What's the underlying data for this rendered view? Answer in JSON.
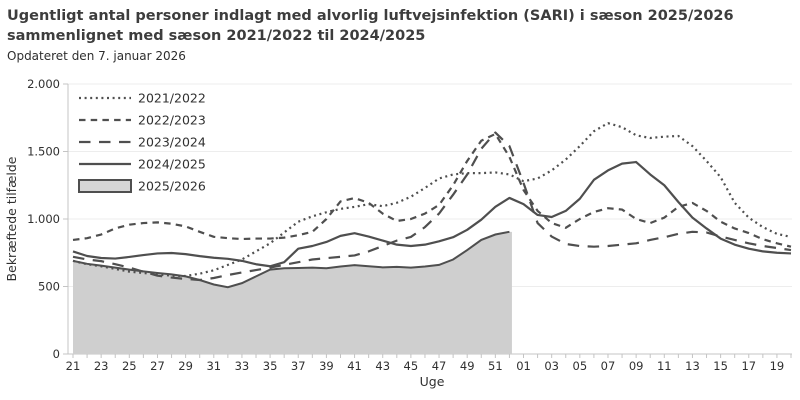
{
  "header": {
    "title_line1": "Ugentligt antal personer indlagt med alvorlig luftvejsinfektion (SARI) i sæson 2025/2026",
    "title_line2": "sammenlignet med sæson 2021/2022 til 2024/2025",
    "subtitle": "Opdateret den 7. januar 2026"
  },
  "chart_data": {
    "type": "line",
    "title": "Ugentligt antal personer indlagt med alvorlig luftvejsinfektion (SARI) i sæson 2025/2026 sammenlignet med sæson 2021/2022 til 2024/2025",
    "subtitle": "Opdateret den 7. januar 2026",
    "xlabel": "Uge",
    "ylabel": "Bekræftede tilfælde",
    "ylim": [
      0,
      2000
    ],
    "grid": "horizontal",
    "legend_position": "top-left",
    "y_ticks": [
      {
        "value": 0,
        "label": "0"
      },
      {
        "value": 500,
        "label": "500"
      },
      {
        "value": 1000,
        "label": "1.000"
      },
      {
        "value": 1500,
        "label": "1.500"
      },
      {
        "value": 2000,
        "label": "2.000"
      }
    ],
    "x_labels": [
      "21",
      "22",
      "23",
      "24",
      "25",
      "26",
      "27",
      "28",
      "29",
      "30",
      "31",
      "32",
      "33",
      "34",
      "35",
      "36",
      "37",
      "38",
      "39",
      "40",
      "41",
      "42",
      "43",
      "44",
      "45",
      "46",
      "47",
      "48",
      "49",
      "50",
      "51",
      "52",
      "01",
      "02",
      "03",
      "04",
      "05",
      "06",
      "07",
      "08",
      "09",
      "10",
      "11",
      "12",
      "13",
      "14",
      "15",
      "16",
      "17",
      "18",
      "19",
      "20"
    ],
    "x_ticks_shown": [
      "21",
      "23",
      "25",
      "27",
      "29",
      "31",
      "33",
      "35",
      "37",
      "39",
      "41",
      "43",
      "45",
      "47",
      "49",
      "51",
      "01",
      "03",
      "05",
      "07",
      "09",
      "11",
      "13",
      "15",
      "17",
      "19"
    ],
    "series": [
      {
        "name": "2021/2022",
        "style": "dotted",
        "values": [
          690,
          665,
          650,
          630,
          610,
          600,
          590,
          580,
          578,
          595,
          620,
          660,
          700,
          760,
          820,
          900,
          980,
          1020,
          1050,
          1075,
          1090,
          1110,
          1095,
          1120,
          1165,
          1230,
          1300,
          1330,
          1340,
          1340,
          1345,
          1330,
          1280,
          1300,
          1360,
          1440,
          1540,
          1650,
          1710,
          1680,
          1620,
          1600,
          1610,
          1615,
          1540,
          1430,
          1310,
          1120,
          1010,
          940,
          890,
          867
        ]
      },
      {
        "name": "2022/2023",
        "style": "dashed",
        "values": [
          845,
          858,
          885,
          930,
          958,
          970,
          975,
          965,
          945,
          905,
          868,
          858,
          852,
          855,
          855,
          862,
          880,
          905,
          1000,
          1130,
          1155,
          1120,
          1040,
          985,
          1000,
          1040,
          1104,
          1250,
          1430,
          1580,
          1630,
          1460,
          1215,
          1060,
          970,
          935,
          1000,
          1052,
          1080,
          1070,
          1000,
          970,
          1010,
          1090,
          1119,
          1060,
          980,
          930,
          896,
          850,
          820,
          795
        ]
      },
      {
        "name": "2023/2024",
        "style": "longdash",
        "values": [
          720,
          700,
          688,
          665,
          640,
          610,
          580,
          566,
          556,
          548,
          563,
          585,
          604,
          622,
          640,
          660,
          680,
          700,
          710,
          720,
          730,
          760,
          800,
          840,
          867,
          940,
          1040,
          1180,
          1330,
          1520,
          1640,
          1540,
          1267,
          970,
          870,
          815,
          800,
          795,
          800,
          810,
          820,
          845,
          865,
          890,
          905,
          900,
          870,
          845,
          820,
          800,
          785,
          770
        ]
      },
      {
        "name": "2024/2025",
        "style": "solid",
        "values": [
          760,
          726,
          711,
          707,
          719,
          733,
          745,
          748,
          740,
          725,
          713,
          705,
          690,
          665,
          650,
          680,
          780,
          800,
          830,
          875,
          895,
          870,
          840,
          810,
          800,
          810,
          835,
          865,
          920,
          995,
          1090,
          1156,
          1110,
          1030,
          1015,
          1060,
          1150,
          1290,
          1360,
          1410,
          1422,
          1330,
          1250,
          1126,
          1010,
          930,
          855,
          810,
          780,
          760,
          750,
          745
        ]
      },
      {
        "name": "2025/2026",
        "style": "area",
        "values": [
          690,
          668,
          655,
          640,
          625,
          612,
          600,
          590,
          575,
          548,
          515,
          495,
          525,
          575,
          625,
          635,
          637,
          640,
          635,
          648,
          658,
          650,
          642,
          645,
          640,
          648,
          660,
          700,
          770,
          845,
          885,
          905
        ]
      }
    ],
    "colors": {
      "line": "#4f4f4f",
      "area_fill": "#cfcfcf",
      "area_stroke": "#4f4f4f",
      "grid": "#ededed",
      "axis": "#c4c4c4",
      "text": "#303030"
    }
  }
}
